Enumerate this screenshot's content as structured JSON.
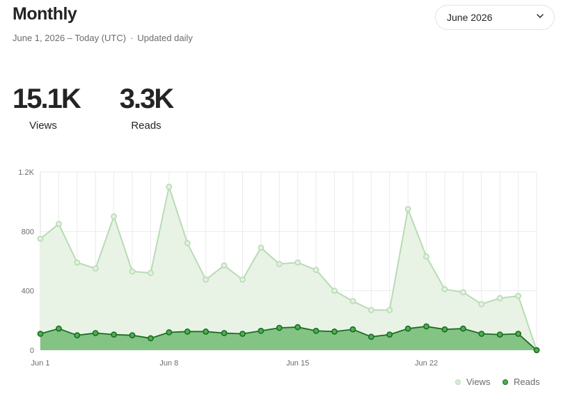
{
  "header": {
    "title": "Monthly",
    "date_range": "June 1, 2026 – Today (UTC)",
    "separator": "·",
    "update_note": "Updated daily"
  },
  "month_select": {
    "value": "June 2026",
    "icon": "chevron-down-icon"
  },
  "stats": [
    {
      "value": "15.1K",
      "label": "Views"
    },
    {
      "value": "3.3K",
      "label": "Reads"
    }
  ],
  "legend": {
    "views": "Views",
    "reads": "Reads"
  },
  "colors": {
    "views_fill": "#e8f3e6",
    "views_line": "#b8dbb3",
    "views_point": "#e4f1e1",
    "reads_fill": "#83c383",
    "reads_line": "#1a6b22",
    "reads_point": "#4fae52",
    "grid": "#ebebeb",
    "axis_text": "#6b6b6b"
  },
  "chart_data": {
    "type": "area",
    "x": [
      "Jun 1",
      "Jun 2",
      "Jun 3",
      "Jun 4",
      "Jun 5",
      "Jun 6",
      "Jun 7",
      "Jun 8",
      "Jun 9",
      "Jun 10",
      "Jun 11",
      "Jun 12",
      "Jun 13",
      "Jun 14",
      "Jun 15",
      "Jun 16",
      "Jun 17",
      "Jun 18",
      "Jun 19",
      "Jun 20",
      "Jun 21",
      "Jun 22",
      "Jun 23",
      "Jun 24",
      "Jun 25",
      "Jun 26",
      "Jun 27",
      "Jun 28"
    ],
    "x_tick_labels": [
      "Jun 1",
      "Jun 8",
      "Jun 15",
      "Jun 22"
    ],
    "y_ticks": [
      0,
      400,
      800,
      1200
    ],
    "y_tick_labels": [
      "0",
      "400",
      "800",
      "1.2K"
    ],
    "ylim": [
      0,
      1200
    ],
    "grid": true,
    "legend_position": "bottom-right",
    "series": [
      {
        "name": "Views",
        "values": [
          750,
          850,
          590,
          550,
          900,
          530,
          520,
          1100,
          720,
          475,
          570,
          475,
          690,
          580,
          590,
          540,
          400,
          330,
          270,
          270,
          950,
          630,
          410,
          390,
          310,
          350,
          365,
          0
        ]
      },
      {
        "name": "Reads",
        "values": [
          110,
          145,
          100,
          115,
          105,
          100,
          80,
          120,
          125,
          125,
          115,
          110,
          130,
          150,
          155,
          130,
          125,
          140,
          90,
          105,
          145,
          160,
          140,
          145,
          110,
          105,
          110,
          0
        ]
      }
    ]
  }
}
